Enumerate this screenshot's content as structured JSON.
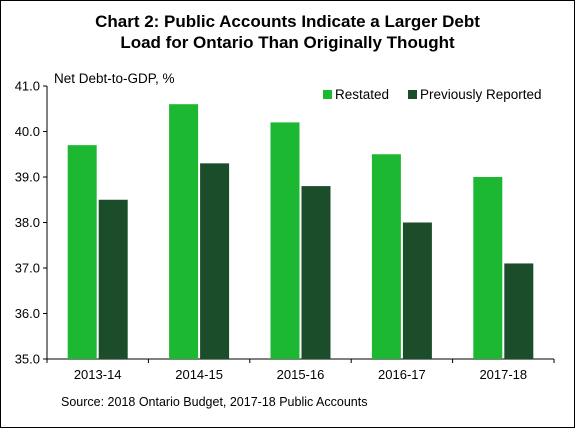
{
  "chart_data": {
    "type": "bar",
    "title": "Chart 2: Public Accounts Indicate a Larger Debt Load for Ontario Than Originally Thought",
    "title_lines": [
      "Chart 2: Public Accounts Indicate a Larger Debt",
      "Load for Ontario Than Originally Thought"
    ],
    "ylabel": "Net Debt-to-GDP, %",
    "xlabel": "",
    "categories": [
      "2013-14",
      "2014-15",
      "2015-16",
      "2016-17",
      "2017-18"
    ],
    "series": [
      {
        "name": "Restated",
        "color": "#1DB832",
        "values": [
          39.7,
          40.6,
          40.2,
          39.5,
          39.0
        ]
      },
      {
        "name": "Previously Reported",
        "color": "#1B4D2B",
        "values": [
          38.5,
          39.3,
          38.8,
          38.0,
          37.1
        ]
      }
    ],
    "ylim": [
      35.0,
      41.0
    ],
    "yticks": [
      "35.0",
      "36.0",
      "37.0",
      "38.0",
      "39.0",
      "40.0",
      "41.0"
    ],
    "grid": false,
    "legend_position": "top-right",
    "source": "Source: 2018 Ontario Budget, 2017-18 Public Accounts"
  }
}
